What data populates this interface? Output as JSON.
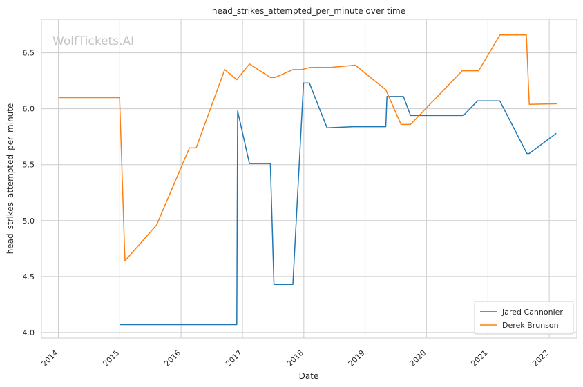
{
  "watermark": "WolfTickets.AI",
  "chart_data": {
    "type": "line",
    "title": "head_strikes_attempted_per_minute over time",
    "xlabel": "Date",
    "ylabel": "head_strikes_attempted_per_minute",
    "xlim": [
      "2013-09-22",
      "2022-06-14"
    ],
    "ylim": [
      3.95,
      6.8
    ],
    "x_ticks": [
      "2014",
      "2015",
      "2016",
      "2017",
      "2018",
      "2019",
      "2020",
      "2021",
      "2022"
    ],
    "y_ticks": [
      "4.0",
      "4.5",
      "5.0",
      "5.5",
      "6.0",
      "6.5"
    ],
    "grid": true,
    "legend_position": "bottom-right",
    "series": [
      {
        "name": "Jared Cannonier",
        "color": "#1f77b4",
        "points": [
          [
            "2015-01-01",
            4.07
          ],
          [
            "2016-11-28",
            4.07
          ],
          [
            "2016-12-03",
            5.98
          ],
          [
            "2017-02-11",
            5.51
          ],
          [
            "2017-06-16",
            5.51
          ],
          [
            "2017-07-07",
            4.43
          ],
          [
            "2017-10-28",
            4.43
          ],
          [
            "2017-12-30",
            6.23
          ],
          [
            "2018-02-03",
            6.23
          ],
          [
            "2018-05-19",
            5.83
          ],
          [
            "2018-10-27",
            5.84
          ],
          [
            "2019-05-04",
            5.84
          ],
          [
            "2019-05-11",
            6.11
          ],
          [
            "2019-08-17",
            6.11
          ],
          [
            "2019-09-28",
            5.94
          ],
          [
            "2020-08-08",
            5.94
          ],
          [
            "2020-10-31",
            6.07
          ],
          [
            "2021-03-13",
            6.07
          ],
          [
            "2021-08-21",
            5.6
          ],
          [
            "2021-09-04",
            5.6
          ],
          [
            "2022-02-12",
            5.78
          ]
        ]
      },
      {
        "name": "Derek Brunson",
        "color": "#ff7f0e",
        "points": [
          [
            "2014-01-04",
            6.1
          ],
          [
            "2014-12-31",
            6.1
          ],
          [
            "2015-02-01",
            4.64
          ],
          [
            "2015-08-08",
            4.96
          ],
          [
            "2016-02-20",
            5.65
          ],
          [
            "2016-03-31",
            5.65
          ],
          [
            "2016-09-17",
            6.35
          ],
          [
            "2016-11-28",
            6.26
          ],
          [
            "2017-02-11",
            6.4
          ],
          [
            "2017-06-16",
            6.28
          ],
          [
            "2017-07-14",
            6.28
          ],
          [
            "2017-10-28",
            6.35
          ],
          [
            "2017-12-20",
            6.35
          ],
          [
            "2018-02-08",
            6.37
          ],
          [
            "2018-06-09",
            6.37
          ],
          [
            "2018-11-03",
            6.39
          ],
          [
            "2019-05-04",
            6.17
          ],
          [
            "2019-08-03",
            5.86
          ],
          [
            "2019-09-28",
            5.86
          ],
          [
            "2020-08-01",
            6.34
          ],
          [
            "2020-11-07",
            6.34
          ],
          [
            "2021-03-13",
            6.66
          ],
          [
            "2021-08-18",
            6.66
          ],
          [
            "2021-09-04",
            6.04
          ],
          [
            "2022-02-19",
            6.045
          ]
        ]
      }
    ]
  }
}
